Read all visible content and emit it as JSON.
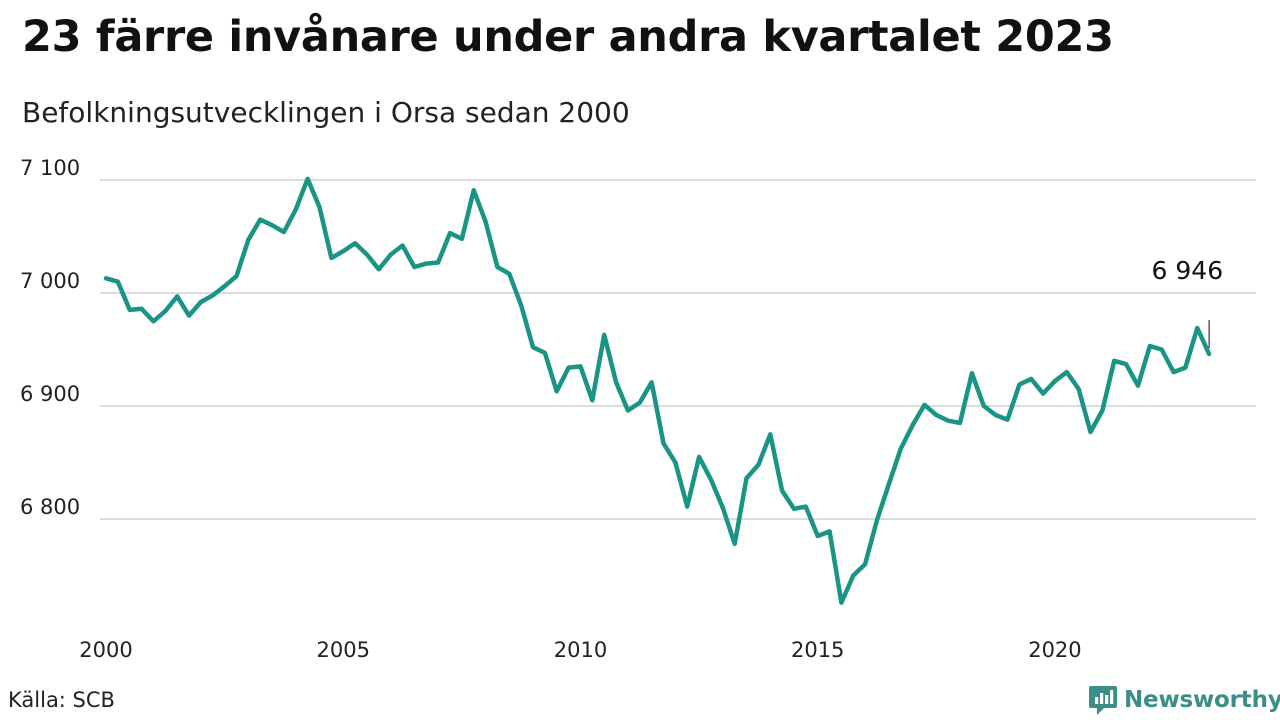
{
  "title": "23 färre invånare under andra kvartalet 2023",
  "subtitle": "Befolkningsutvecklingen i Orsa sedan 2000",
  "source": "Källa: SCB",
  "brand": {
    "name": "Newsworthy",
    "icon": "newsworthy-logo-icon",
    "color": "#3b8f86"
  },
  "chart_data": {
    "type": "line",
    "title": "23 färre invånare under andra kvartalet 2023",
    "subtitle": "Befolkningsutvecklingen i Orsa sedan 2000",
    "xlabel": "",
    "ylabel": "",
    "xlim": [
      2000,
      2024
    ],
    "ylim": [
      6720,
      7110
    ],
    "x_ticks": [
      2000,
      2005,
      2010,
      2015,
      2020
    ],
    "y_ticks": [
      7100,
      7000,
      6900,
      6800
    ],
    "y_tick_labels": [
      "7 100",
      "7 000",
      "6 900",
      "6 800"
    ],
    "grid": true,
    "line_color": "#1a9484",
    "end_label": "6 946",
    "series": [
      {
        "x": [
          2000.0,
          2000.25,
          2000.5,
          2000.75,
          2001.0,
          2001.25,
          2001.5,
          2001.75,
          2002.0,
          2002.25,
          2002.5,
          2002.75,
          2003.0,
          2003.25,
          2003.5,
          2003.75,
          2004.0,
          2004.25,
          2004.5,
          2004.75,
          2005.0,
          2005.25,
          2005.5,
          2005.75,
          2006.0,
          2006.25,
          2006.5,
          2006.75,
          2007.0,
          2007.25,
          2007.5,
          2007.75,
          2008.0,
          2008.25,
          2008.5,
          2008.75,
          2009.0,
          2009.25,
          2009.5,
          2009.75,
          2010.0,
          2010.25,
          2010.5,
          2010.75,
          2011.0,
          2011.25,
          2011.5,
          2011.75,
          2012.0,
          2012.25,
          2012.5,
          2012.75,
          2013.0,
          2013.25,
          2013.5,
          2013.75,
          2014.0,
          2014.25,
          2014.5,
          2014.75,
          2015.0,
          2015.25,
          2015.5,
          2015.75,
          2016.0,
          2016.25,
          2016.5,
          2016.75,
          2017.0,
          2017.25,
          2017.5,
          2017.75,
          2018.0,
          2018.25,
          2018.5,
          2018.75,
          2019.0,
          2019.25,
          2019.5,
          2019.75,
          2020.0,
          2020.25,
          2020.5,
          2020.75,
          2021.0,
          2021.25,
          2021.5,
          2021.75,
          2022.0,
          2022.25,
          2022.5,
          2022.75,
          2023.0,
          2023.25
        ],
        "values": [
          7013,
          7010,
          6985,
          6986,
          6975,
          6984,
          6997,
          6980,
          6992,
          6998,
          7006,
          7015,
          7047,
          7065,
          7060,
          7054,
          7074,
          7101,
          7076,
          7031,
          7037,
          7044,
          7034,
          7021,
          7034,
          7042,
          7023,
          7026,
          7027,
          7053,
          7048,
          7091,
          7063,
          7023,
          7017,
          6989,
          6952,
          6947,
          6913,
          6934,
          6935,
          6905,
          6963,
          6921,
          6896,
          6903,
          6921,
          6867,
          6850,
          6811,
          6855,
          6835,
          6810,
          6778,
          6836,
          6848,
          6875,
          6825,
          6809,
          6811,
          6785,
          6789,
          6726,
          6750,
          6760,
          6799,
          6831,
          6862,
          6883,
          6901,
          6892,
          6887,
          6885,
          6929,
          6900,
          6892,
          6888,
          6919,
          6924,
          6911,
          6922,
          6930,
          6915,
          6877,
          6896,
          6940,
          6937,
          6918,
          6953,
          6950,
          6930,
          6934,
          6969,
          6946
        ]
      }
    ]
  }
}
